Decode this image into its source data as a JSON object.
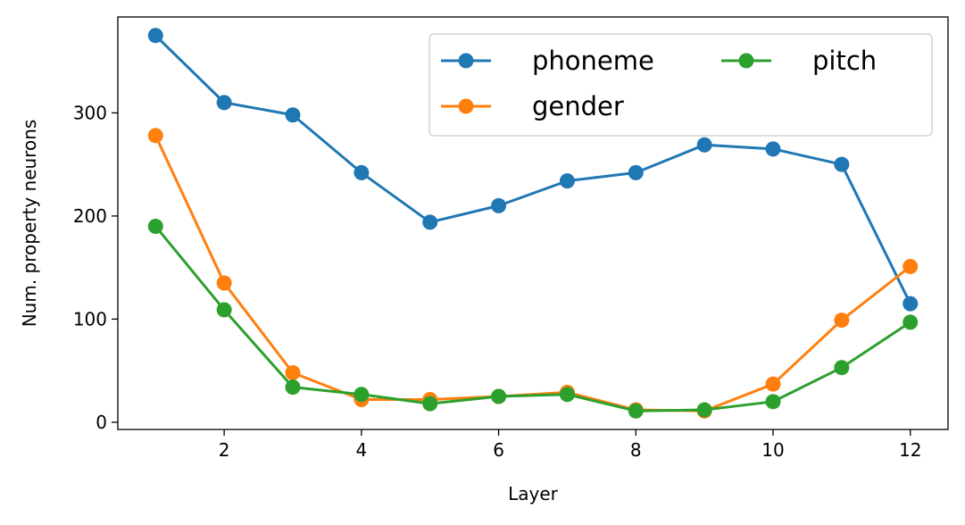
{
  "chart_data": {
    "type": "line",
    "title": "",
    "xlabel": "Layer",
    "ylabel": "Num. property neurons",
    "x": [
      1,
      2,
      3,
      4,
      5,
      6,
      7,
      8,
      9,
      10,
      11,
      12
    ],
    "xlim": [
      0.45,
      12.55
    ],
    "ylim": [
      -7,
      393
    ],
    "xticks": [
      2,
      4,
      6,
      8,
      10,
      12
    ],
    "yticks": [
      0,
      100,
      200,
      300
    ],
    "grid": false,
    "legend": {
      "placement": "top-right",
      "columns": 2
    },
    "series": [
      {
        "name": "phoneme",
        "color": "#1f77b4",
        "values": [
          375,
          310,
          298,
          242,
          194,
          210,
          234,
          242,
          269,
          265,
          250,
          115
        ]
      },
      {
        "name": "gender",
        "color": "#ff7f0e",
        "values": [
          278,
          135,
          48,
          22,
          22,
          25,
          29,
          12,
          11,
          37,
          99,
          151
        ]
      },
      {
        "name": "pitch",
        "color": "#2ca02c",
        "values": [
          190,
          109,
          34,
          27,
          18,
          25,
          27,
          11,
          12,
          20,
          53,
          97
        ]
      }
    ]
  }
}
